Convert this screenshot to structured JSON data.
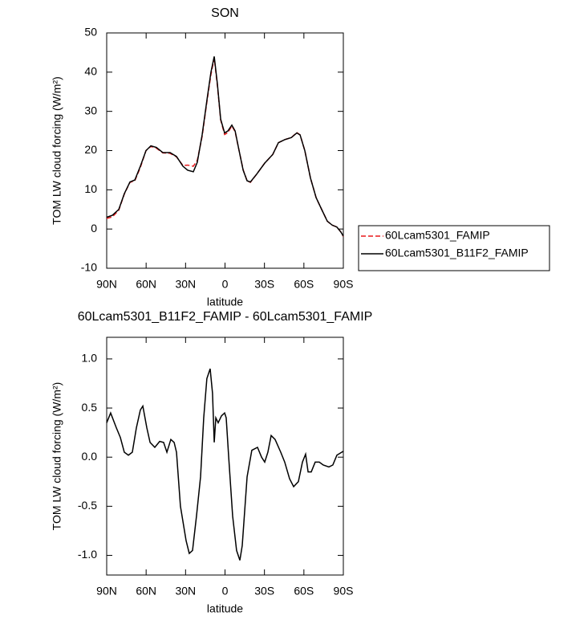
{
  "chart_data": [
    {
      "type": "line",
      "title": "SON",
      "xlabel": "latitude",
      "ylabel": "TOM LW cloud forcing (W/m²)",
      "x": [
        90,
        85.7,
        80.8,
        76.6,
        72.3,
        68.6,
        64.4,
        60.1,
        56.4,
        52.2,
        47.3,
        41.8,
        36.9,
        32,
        28.4,
        24.1,
        21.1,
        17.4,
        13.7,
        10.7,
        8.2,
        5.8,
        3.3,
        0.3,
        -2.2,
        -5.2,
        -7.7,
        -10.7,
        -13.8,
        -16.8,
        -19.3,
        -24.1,
        -30.2,
        -36.3,
        -40.6,
        -45.5,
        -50.4,
        -54.6,
        -57.1,
        -60.7,
        -65,
        -69.3,
        -73.5,
        -77.8,
        -81.5,
        -85.1,
        -88.2,
        -90
      ],
      "series": [
        {
          "name": "60Lcam5301_FAMIP",
          "color": "#e8191c",
          "dashed": true,
          "values": [
            2.7,
            3.1,
            4.8,
            8.9,
            11.9,
            12.3,
            15.7,
            20,
            21.1,
            20.6,
            19.4,
            19.3,
            18.4,
            16.2,
            16.3,
            16,
            17.5,
            23.6,
            32.6,
            39.4,
            43.6,
            36.6,
            27.8,
            24.1,
            24.6,
            26.3,
            24.8,
            20,
            15.1,
            12.3,
            11.9,
            14,
            16.8,
            19,
            22,
            22.8,
            23.3,
            24.6,
            24,
            20,
            13,
            8,
            5,
            2,
            1,
            0.5,
            -0.8,
            -1.9
          ]
        },
        {
          "name": "60Lcam5301_B11F2_FAMIP",
          "color": "#000000",
          "dashed": false,
          "values": [
            3,
            3.5,
            5,
            9,
            12,
            12.5,
            16,
            20,
            21.2,
            20.8,
            19.5,
            19.5,
            18.5,
            16,
            15,
            14.6,
            17,
            24,
            33,
            40,
            44,
            37,
            28,
            24.5,
            25,
            26.5,
            25,
            20,
            15,
            12.3,
            12,
            14,
            16.8,
            19,
            22,
            22.8,
            23.3,
            24.5,
            24,
            20,
            13,
            8,
            5,
            2,
            1,
            0.5,
            -0.8,
            -1.8
          ]
        }
      ],
      "xlim": [
        90,
        -90
      ],
      "xticks": [
        {
          "value": 90,
          "label": "90N"
        },
        {
          "value": 60,
          "label": "60N"
        },
        {
          "value": 30,
          "label": "30N"
        },
        0,
        {
          "value": -30,
          "label": "30S"
        },
        {
          "value": -60,
          "label": "60S"
        },
        {
          "value": -90,
          "label": "90S"
        }
      ],
      "ylim": [
        -10,
        50
      ],
      "yticks": [
        -10,
        0,
        10,
        20,
        30,
        40,
        50
      ],
      "legend": "outside-right"
    },
    {
      "type": "line",
      "title": "60Lcam5301_B11F2_FAMIP - 60Lcam5301_FAMIP",
      "xlabel": "latitude",
      "ylabel": "TOM LW cloud forcing (W/m²)",
      "x": [
        90,
        87,
        82.7,
        79.6,
        76.6,
        73.5,
        70.5,
        67.4,
        64.4,
        62.5,
        59.5,
        57,
        53.4,
        49.7,
        46.7,
        44.2,
        41.2,
        38.7,
        36.9,
        33.9,
        29.6,
        27.2,
        24.7,
        21.7,
        18.6,
        16.2,
        13.8,
        11.3,
        9.5,
        8.2,
        7,
        5.2,
        2.7,
        0.3,
        -0.9,
        -2.8,
        -5.8,
        -8.8,
        -11.3,
        -13.1,
        -16.8,
        -20.4,
        -24.7,
        -27.8,
        -30.2,
        -32.6,
        -35.1,
        -38.1,
        -42.4,
        -45.4,
        -49.1,
        -52.2,
        -55.8,
        -58.9,
        -61.3,
        -63.2,
        -65.6,
        -68.6,
        -71.7,
        -74.7,
        -79,
        -82,
        -85.1,
        -90
      ],
      "color": "#000000",
      "values": [
        0.35,
        0.45,
        0.3,
        0.2,
        0.05,
        0.02,
        0.05,
        0.3,
        0.48,
        0.52,
        0.3,
        0.15,
        0.1,
        0.16,
        0.15,
        0.05,
        0.18,
        0.15,
        0.05,
        -0.5,
        -0.85,
        -0.98,
        -0.95,
        -0.6,
        -0.2,
        0.4,
        0.8,
        0.9,
        0.65,
        0.15,
        0.4,
        0.35,
        0.42,
        0.45,
        0.4,
        0,
        -0.6,
        -0.95,
        -1.05,
        -0.9,
        -0.2,
        0.07,
        0.1,
        0,
        -0.05,
        0.05,
        0.22,
        0.18,
        0.05,
        -0.05,
        -0.22,
        -0.3,
        -0.25,
        -0.05,
        0.03,
        -0.15,
        -0.15,
        -0.05,
        -0.05,
        -0.08,
        -0.1,
        -0.08,
        0.02,
        0.06
      ],
      "xlim": [
        90,
        -90
      ],
      "xticks": [
        {
          "value": 90,
          "label": "90N"
        },
        {
          "value": 60,
          "label": "60N"
        },
        {
          "value": 30,
          "label": "30N"
        },
        0,
        {
          "value": -30,
          "label": "30S"
        },
        {
          "value": -60,
          "label": "60S"
        },
        {
          "value": -90,
          "label": "90S"
        }
      ],
      "ylim": [
        -1.2,
        1.22
      ],
      "yticks": [
        {
          "value": -1,
          "label": "-1.0"
        },
        -0.5,
        {
          "value": 0,
          "label": "0.0"
        },
        0.5,
        {
          "value": 1,
          "label": "1.0"
        }
      ]
    }
  ]
}
